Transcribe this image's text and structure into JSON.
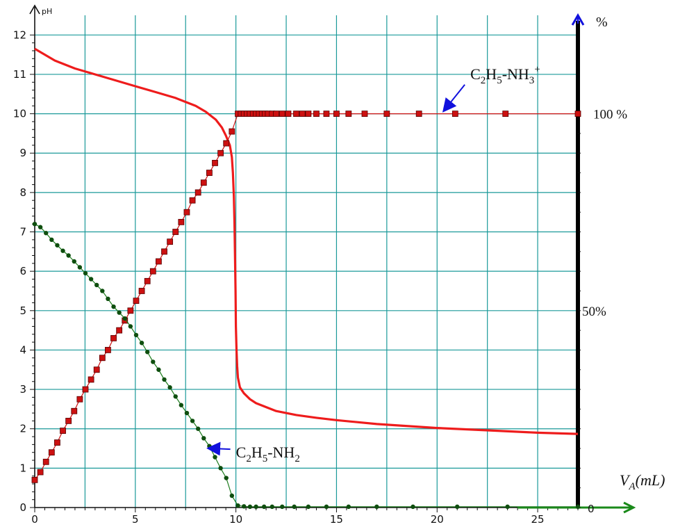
{
  "chart_data": {
    "type": "line",
    "title": "",
    "xlabel": "V_A (mL)",
    "xlabel_main": "V",
    "xlabel_sub": "A",
    "xlabel_unit": "(mL)",
    "ylabel": "pH",
    "y2label": "%",
    "xlim": [
      0,
      27
    ],
    "ylim": [
      0,
      12.5
    ],
    "y2lim": [
      0,
      100
    ],
    "xticks": [
      0,
      5,
      10,
      15,
      20,
      25
    ],
    "yticks": [
      0,
      1,
      2,
      3,
      4,
      5,
      6,
      7,
      8,
      9,
      10,
      11,
      12
    ],
    "y2ticks": [
      {
        "value": 0,
        "label": "0"
      },
      {
        "value": 50,
        "label": "50%"
      },
      {
        "value": 100,
        "label": "100 %"
      }
    ],
    "grid": true,
    "series": [
      {
        "name": "pH",
        "color": "#ee1c1c",
        "marker": "none",
        "axis": "left",
        "x": [
          0,
          0.5,
          1,
          2,
          3,
          4,
          5,
          6,
          7,
          7.5,
          8,
          8.5,
          9,
          9.3,
          9.5,
          9.7,
          9.8,
          9.85,
          9.9,
          9.93,
          9.96,
          9.98,
          10,
          10.03,
          10.06,
          10.1,
          10.2,
          10.4,
          10.7,
          11,
          12,
          13,
          14,
          15,
          17,
          20,
          23,
          25,
          27
        ],
        "y": [
          11.65,
          11.5,
          11.35,
          11.15,
          11.0,
          10.85,
          10.7,
          10.55,
          10.4,
          10.3,
          10.2,
          10.05,
          9.85,
          9.65,
          9.45,
          9.2,
          8.9,
          8.5,
          7.9,
          7.2,
          6.2,
          5.5,
          4.6,
          4.0,
          3.6,
          3.3,
          3.05,
          2.9,
          2.75,
          2.65,
          2.45,
          2.35,
          2.28,
          2.22,
          2.12,
          2.02,
          1.95,
          1.9,
          1.87
        ]
      },
      {
        "name": "C2H5-NH3+",
        "color": "#cc1111",
        "marker": "square",
        "axis": "right",
        "x": [
          0,
          0.28,
          0.56,
          0.84,
          1.12,
          1.4,
          1.68,
          1.96,
          2.24,
          2.52,
          2.8,
          3.08,
          3.36,
          3.64,
          3.92,
          4.2,
          4.48,
          4.76,
          5.04,
          5.32,
          5.6,
          5.88,
          6.16,
          6.44,
          6.72,
          7.0,
          7.28,
          7.56,
          7.84,
          8.12,
          8.4,
          8.68,
          8.96,
          9.24,
          9.52,
          9.8,
          10.1,
          10.25,
          10.4,
          10.55,
          10.7,
          10.85,
          11.0,
          11.15,
          11.3,
          11.45,
          11.6,
          11.8,
          12.0,
          12.3,
          12.6,
          13.0,
          13.3,
          13.6,
          14.0,
          14.5,
          15.0,
          15.6,
          16.4,
          17.5,
          19.1,
          20.9,
          23.4,
          27.0
        ],
        "y": [
          7,
          9,
          11.6,
          14,
          16.5,
          19.5,
          22,
          24.5,
          27.5,
          30,
          32.5,
          35,
          38,
          40,
          43,
          45,
          47.5,
          50,
          52.5,
          55,
          57.5,
          60,
          62.5,
          65,
          67.5,
          70,
          72.5,
          75,
          78,
          80,
          82.5,
          85,
          87.5,
          90,
          92.5,
          95.5,
          100,
          100,
          100,
          100,
          100,
          100,
          100,
          100,
          100,
          100,
          100,
          100,
          100,
          100,
          100,
          100,
          100,
          100,
          100,
          100,
          100,
          100,
          100,
          100,
          100,
          100,
          100,
          100
        ]
      },
      {
        "name": "C2H5-NH2",
        "color": "#1a7a1a",
        "marker": "circle",
        "axis": "right",
        "x": [
          0,
          0.28,
          0.56,
          0.84,
          1.12,
          1.4,
          1.68,
          1.96,
          2.24,
          2.52,
          2.8,
          3.08,
          3.36,
          3.64,
          3.92,
          4.2,
          4.48,
          4.76,
          5.04,
          5.32,
          5.6,
          5.88,
          6.16,
          6.44,
          6.72,
          7.0,
          7.28,
          7.56,
          7.84,
          8.12,
          8.4,
          8.68,
          8.96,
          9.24,
          9.52,
          9.8,
          10.1,
          10.4,
          10.7,
          11.0,
          11.4,
          11.8,
          12.3,
          12.9,
          13.6,
          14.5,
          15.6,
          17.0,
          18.8,
          21.0,
          23.5,
          27.0
        ],
        "y": [
          72,
          71.2,
          69.7,
          68,
          66.6,
          65.2,
          64,
          62.5,
          61,
          59.5,
          58,
          56.5,
          55,
          53,
          51,
          49.5,
          48,
          46,
          43.8,
          41.8,
          39.5,
          37,
          35,
          32.5,
          30.5,
          28.2,
          26,
          24,
          22,
          20,
          17.6,
          15.6,
          12.8,
          10,
          7.5,
          3,
          0.5,
          0.3,
          0.2,
          0.2,
          0.2,
          0.2,
          0.2,
          0.2,
          0.2,
          0.2,
          0.2,
          0.2,
          0.2,
          0.2,
          0.2,
          0.2
        ]
      }
    ],
    "annotations": [
      {
        "id": "nh3",
        "text_main": "C",
        "sub1": "2",
        "mid": "H",
        "sub2": "5",
        "rest": "-NH",
        "sub3": "3",
        "sup": "+",
        "x": 20.3,
        "y_pct": 100,
        "text_x": 21.1,
        "text_y_pct": 109.5
      },
      {
        "id": "nh2",
        "text_main": "C",
        "sub1": "2",
        "mid": "H",
        "sub2": "5",
        "rest": "-NH",
        "sub3": "2",
        "sup": "",
        "x": 8.6,
        "y_pct": 15,
        "text_x": 10.0,
        "text_y_pct": 13.4
      }
    ]
  }
}
